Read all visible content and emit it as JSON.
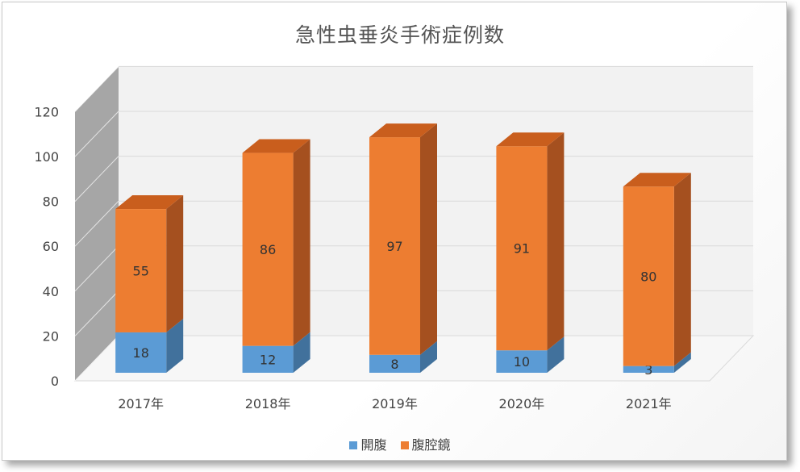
{
  "colors": {
    "open": "#5b9bd5",
    "open_side": "#41719c",
    "lap": "#ed7d31",
    "lap_side": "#a5501f",
    "lap_top": "#c95e1d",
    "wall_back": "#f2f2f2",
    "wall_side": "#a6a6a6",
    "grid": "#d9d9d9"
  },
  "chart_data": {
    "type": "bar",
    "stacked": true,
    "three_d": true,
    "title": "急性虫垂炎手術症例数",
    "categories": [
      "2017年",
      "2018年",
      "2019年",
      "2020年",
      "2021年"
    ],
    "series": [
      {
        "name": "開腹",
        "values": [
          18,
          12,
          8,
          10,
          3
        ]
      },
      {
        "name": "腹腔鏡",
        "values": [
          55,
          86,
          97,
          91,
          80
        ]
      }
    ],
    "yticks": [
      "0",
      "20",
      "40",
      "60",
      "80",
      "100",
      "120"
    ],
    "ylim": [
      0,
      120
    ],
    "grid": true,
    "legend_position": "bottom"
  }
}
